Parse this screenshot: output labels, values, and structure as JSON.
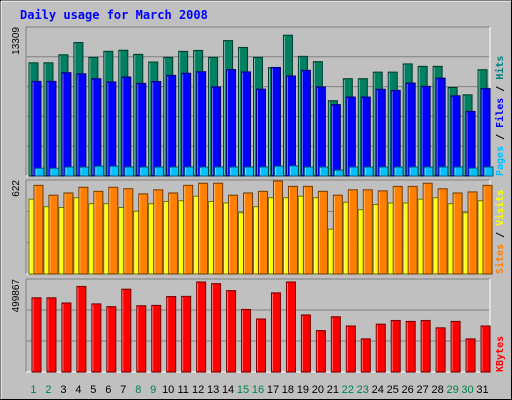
{
  "chart_data": {
    "type": "bar",
    "title": "Daily usage for March 2008",
    "categories": [
      "1",
      "2",
      "3",
      "4",
      "5",
      "6",
      "7",
      "8",
      "9",
      "10",
      "11",
      "12",
      "13",
      "14",
      "15",
      "16",
      "17",
      "18",
      "19",
      "20",
      "21",
      "22",
      "23",
      "24",
      "25",
      "26",
      "27",
      "28",
      "29",
      "30",
      "31"
    ],
    "weekend_days": [
      "1",
      "2",
      "8",
      "9",
      "15",
      "16",
      "22",
      "23",
      "29",
      "30"
    ],
    "panels": [
      {
        "id": "hits-panel",
        "max_label": "13309",
        "ymax": 13309,
        "legend": [
          {
            "text": "Pages",
            "color": "#00c0ff"
          },
          {
            "text": " / ",
            "color": "#000000"
          },
          {
            "text": "Files",
            "color": "#0000ff"
          },
          {
            "text": " / ",
            "color": "#000000"
          },
          {
            "text": "Hits",
            "color": "#008080"
          }
        ],
        "series": [
          {
            "name": "Hits",
            "color": "#008060",
            "values": [
              10180,
              10180,
              10900,
              12000,
              10670,
              11210,
              11310,
              10940,
              10250,
              10670,
              11210,
              11290,
              10670,
              12180,
              11560,
              10670,
              9740,
              12660,
              10760,
              10280,
              6770,
              8750,
              8750,
              9340,
              9340,
              10080,
              9860,
              9860,
              7960,
              7300,
              9560
            ]
          },
          {
            "name": "Files",
            "color": "#0000ff",
            "values": [
              8510,
              8510,
              9290,
              9190,
              8750,
              8460,
              8900,
              8330,
              8500,
              9050,
              9240,
              9380,
              8010,
              9570,
              9360,
              7810,
              9760,
              8990,
              9500,
              8010,
              6420,
              7100,
              7100,
              7800,
              7700,
              8360,
              8060,
              8800,
              7210,
              5810,
              7860
            ]
          },
          {
            "name": "Pages",
            "color": "#00c0ff",
            "values": [
              700,
              700,
              810,
              810,
              880,
              880,
              810,
              810,
              810,
              810,
              810,
              810,
              810,
              810,
              810,
              810,
              880,
              910,
              810,
              810,
              530,
              810,
              810,
              810,
              810,
              810,
              810,
              810,
              810,
              710,
              810
            ]
          }
        ]
      },
      {
        "id": "visits-panel",
        "max_label": "622",
        "ymax": 622,
        "legend": [
          {
            "text": "Sites",
            "color": "#ff8000"
          },
          {
            "text": " / ",
            "color": "#000000"
          },
          {
            "text": "Visits",
            "color": "#ffff00"
          }
        ],
        "series": [
          {
            "name": "Visits",
            "color": "#ffff00",
            "values": [
              500,
              450,
              445,
              510,
              470,
              470,
              445,
              420,
              470,
              485,
              490,
              520,
              485,
              475,
              410,
              450,
              510,
              510,
              520,
              510,
              300,
              480,
              430,
              465,
              475,
              475,
              500,
              510,
              470,
              410,
              490
            ]
          },
          {
            "name": "Sites",
            "color": "#ff8000",
            "values": [
              593,
              527,
              542,
              580,
              553,
              580,
              570,
              536,
              563,
              542,
              593,
              607,
              607,
              527,
              542,
              553,
              622,
              586,
              586,
              553,
              527,
              563,
              563,
              556,
              586,
              586,
              607,
              570,
              542,
              549,
              593
            ]
          }
        ]
      },
      {
        "id": "kbytes-panel",
        "max_label": "499867",
        "ymax": 499867,
        "legend": [
          {
            "text": "KBytes",
            "color": "#ff0000"
          }
        ],
        "series": [
          {
            "name": "KBytes",
            "color": "#ff0000",
            "values": [
              403000,
              403000,
              375000,
              465000,
              370000,
              355000,
              450000,
              360000,
              362000,
              410000,
              411000,
              489000,
              480000,
              442000,
              340000,
              288000,
              430000,
              489000,
              310000,
              225000,
              300000,
              250000,
              180000,
              260000,
              280000,
              275000,
              280000,
              240000,
              275000,
              180000,
              250000
            ]
          }
        ]
      }
    ]
  }
}
